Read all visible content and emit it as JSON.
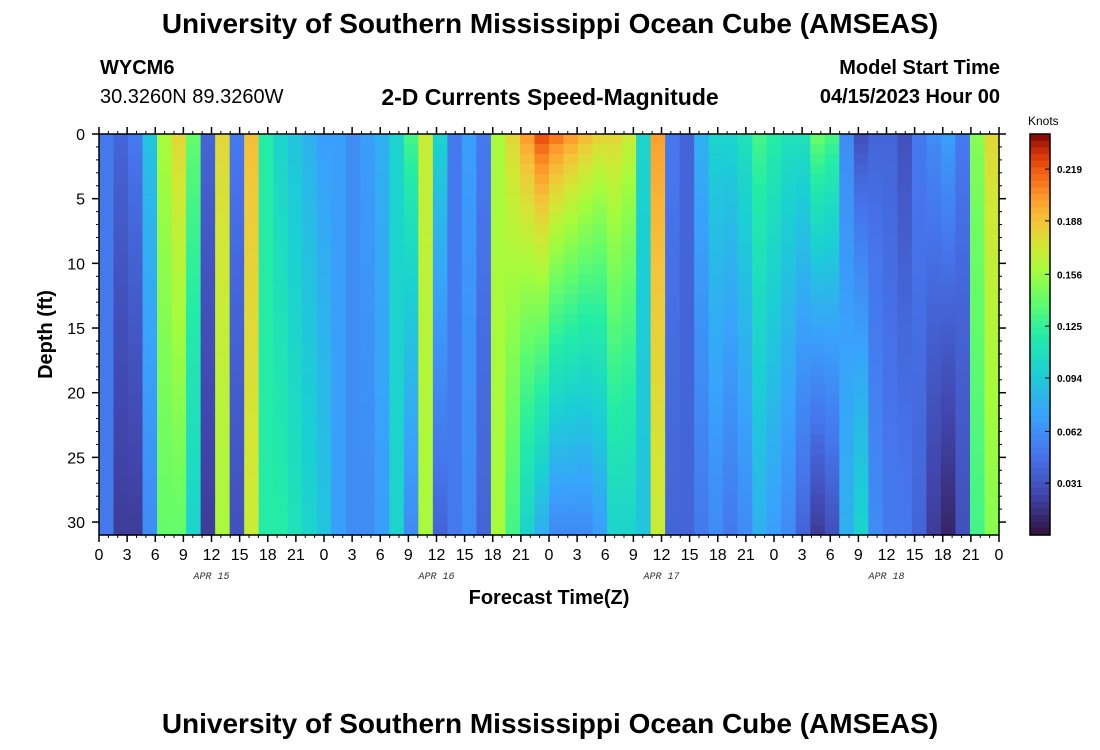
{
  "page": {
    "title": "University of Southern Mississippi Ocean Cube (AMSEAS)",
    "station_id": "WYCM6",
    "station_coords": "30.3260N  89.3260W",
    "model_start_label": "Model Start Time",
    "model_start_value": "04/15/2023 Hour 00",
    "bottom_title": "University of Southern Mississippi Ocean Cube (AMSEAS)"
  },
  "chart_data": {
    "type": "heatmap",
    "title": "2-D Currents Speed-Magnitude",
    "xlabel": "Forecast Time(Z)",
    "ylabel": "Depth (ft)",
    "colorbar_label": "Knots",
    "xlim": [
      0,
      96
    ],
    "ylim": [
      0,
      31
    ],
    "y_reversed": true,
    "x_tick_labels": [
      "0",
      "3",
      "6",
      "9",
      "12",
      "15",
      "18",
      "21",
      "0",
      "3",
      "6",
      "9",
      "12",
      "15",
      "18",
      "21",
      "0",
      "3",
      "6",
      "9",
      "12",
      "15",
      "18",
      "21",
      "0",
      "3",
      "6",
      "9",
      "12",
      "15",
      "18",
      "21",
      "0"
    ],
    "y_ticks": [
      0,
      5,
      10,
      15,
      20,
      25,
      30
    ],
    "day_labels": [
      {
        "text": "APR 15",
        "hour": 12
      },
      {
        "text": "APR 16",
        "hour": 36
      },
      {
        "text": "APR 17",
        "hour": 60
      },
      {
        "text": "APR 18",
        "hour": 84
      }
    ],
    "colorbar_ticks": [
      "0.219",
      "0.188",
      "0.156",
      "0.125",
      "0.094",
      "0.062",
      "0.031"
    ],
    "colorbar_tick_values": [
      0.219,
      0.188,
      0.156,
      0.125,
      0.094,
      0.062,
      0.031
    ],
    "vmin": 0.0,
    "vmax": 0.24,
    "speed_at_surface_knots": [
      0.05,
      0.04,
      0.05,
      0.09,
      0.16,
      0.18,
      0.14,
      0.04,
      0.18,
      0.05,
      0.19,
      0.12,
      0.1,
      0.09,
      0.08,
      0.07,
      0.07,
      0.06,
      0.07,
      0.08,
      0.1,
      0.13,
      0.17,
      0.1,
      0.05,
      0.07,
      0.05,
      0.16,
      0.18,
      0.2,
      0.22,
      0.21,
      0.2,
      0.19,
      0.18,
      0.18,
      0.17,
      0.1,
      0.2,
      0.05,
      0.04,
      0.08,
      0.1,
      0.1,
      0.11,
      0.13,
      0.12,
      0.11,
      0.11,
      0.14,
      0.13,
      0.06,
      0.03,
      0.04,
      0.04,
      0.03,
      0.05,
      0.06,
      0.07,
      0.05,
      0.15,
      0.18
    ],
    "speed_at_bottom_knots": [
      0.05,
      0.02,
      0.02,
      0.06,
      0.14,
      0.14,
      0.1,
      0.02,
      0.16,
      0.03,
      0.17,
      0.12,
      0.12,
      0.11,
      0.1,
      0.09,
      0.07,
      0.06,
      0.06,
      0.07,
      0.1,
      0.06,
      0.16,
      0.04,
      0.05,
      0.06,
      0.04,
      0.16,
      0.13,
      0.1,
      0.08,
      0.06,
      0.06,
      0.06,
      0.07,
      0.1,
      0.1,
      0.09,
      0.17,
      0.04,
      0.04,
      0.05,
      0.06,
      0.05,
      0.06,
      0.08,
      0.07,
      0.06,
      0.04,
      0.02,
      0.03,
      0.08,
      0.1,
      0.06,
      0.05,
      0.05,
      0.04,
      0.02,
      0.01,
      0.03,
      0.13,
      0.15
    ]
  }
}
